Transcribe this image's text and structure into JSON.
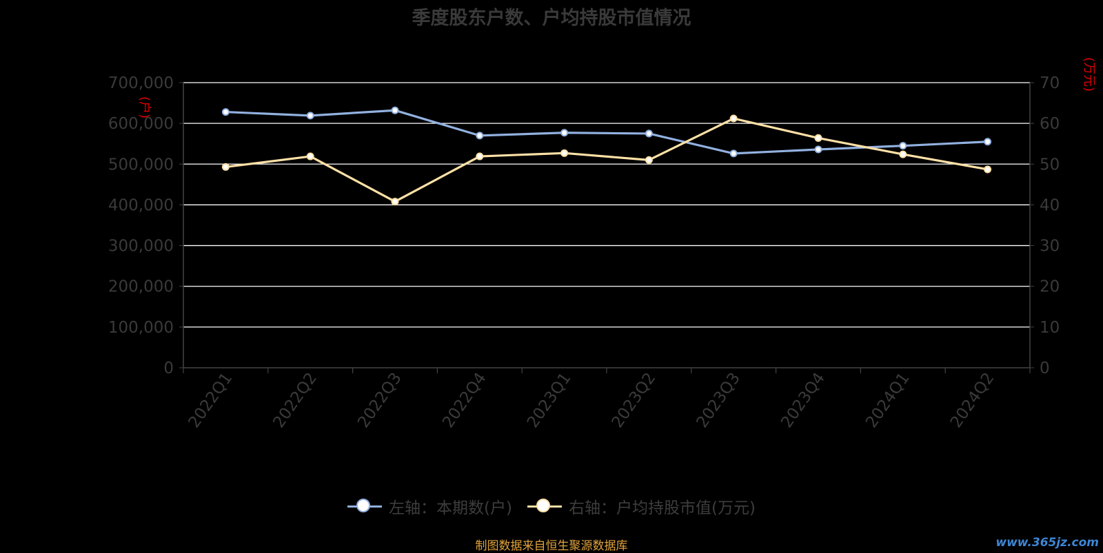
{
  "title": "季度股东户数、户均持股市值情况",
  "source_text": "制图数据来自恒生聚源数据库",
  "watermark": "www.365jz.com",
  "colors": {
    "series_left": "#92b1e0",
    "series_right": "#ffe1a6",
    "grid": "#ffffff",
    "axis_text": "#3a3a3a",
    "unit_text": "#e00000",
    "source": "#e0a33c"
  },
  "legend": [
    {
      "label": "左轴：本期数(户)",
      "color": "#92b1e0"
    },
    {
      "label": "右轴：户均持股市值(万元)",
      "color": "#ffe1a6"
    }
  ],
  "chart_data": {
    "type": "line",
    "title": "季度股东户数、户均持股市值情况",
    "categories": [
      "2022Q1",
      "2022Q2",
      "2022Q3",
      "2022Q4",
      "2023Q1",
      "2023Q2",
      "2023Q3",
      "2023Q4",
      "2024Q1",
      "2024Q2"
    ],
    "y_left": {
      "unit_label": "(户)",
      "min": 0,
      "max": 700000,
      "step": 100000,
      "tick_labels": [
        "0",
        "100,000",
        "200,000",
        "300,000",
        "400,000",
        "500,000",
        "600,000",
        "700,000"
      ]
    },
    "y_right": {
      "unit_label": "(万元)",
      "min": 0,
      "max": 70,
      "step": 10,
      "tick_labels": [
        "0",
        "10",
        "20",
        "30",
        "40",
        "50",
        "60",
        "70"
      ]
    },
    "series": [
      {
        "name": "本期数(户)",
        "axis": "left",
        "color": "#92b1e0",
        "values": [
          628000,
          619000,
          632000,
          570000,
          577000,
          575000,
          526000,
          536000,
          545000,
          555000
        ]
      },
      {
        "name": "户均持股市值(万元)",
        "axis": "right",
        "color": "#ffe1a6",
        "values": [
          49.3,
          51.9,
          40.8,
          51.9,
          52.7,
          51.0,
          61.2,
          56.4,
          52.4,
          48.7
        ]
      }
    ],
    "grid": true,
    "legend_position": "bottom"
  }
}
